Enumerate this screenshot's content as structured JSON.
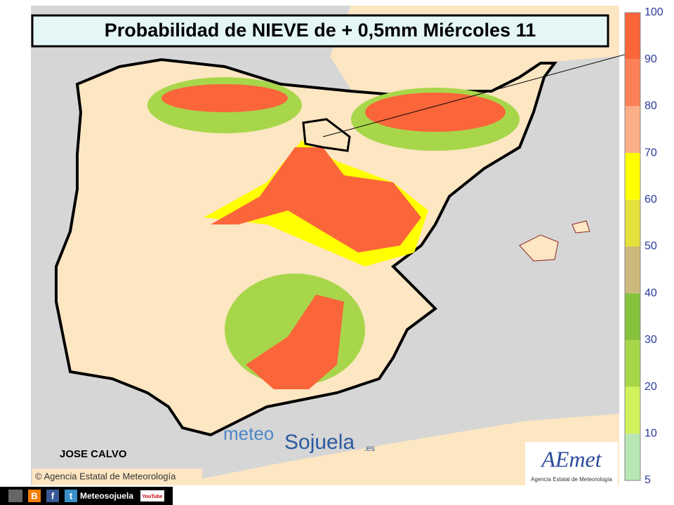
{
  "title": "Probabilidad de NIEVE de + 0,5mm Miércoles 11",
  "legend": {
    "ticks": [
      100,
      90,
      80,
      70,
      60,
      50,
      40,
      30,
      20,
      10,
      5
    ],
    "colors": [
      "#fa653a",
      "#fb8256",
      "#fcae86",
      "#ffff00",
      "#e3e13c",
      "#cbb97c",
      "#86c23c",
      "#a8d64a",
      "#d2f25c",
      "#b8e6b4"
    ]
  },
  "author": "JOSE CALVO",
  "credit": "© Agencia Estatal de Meteorología",
  "logo": {
    "meteo": "meteo",
    "sojuela": "Sojuela",
    "domain": ".es"
  },
  "aemet": {
    "name": "AEmet",
    "subtitle": "Agencia Estatal de Meteorología"
  },
  "footer": {
    "icons": [
      "B",
      "f",
      "t"
    ],
    "handle": "Meteosojuela",
    "youtube": "YouTube"
  }
}
